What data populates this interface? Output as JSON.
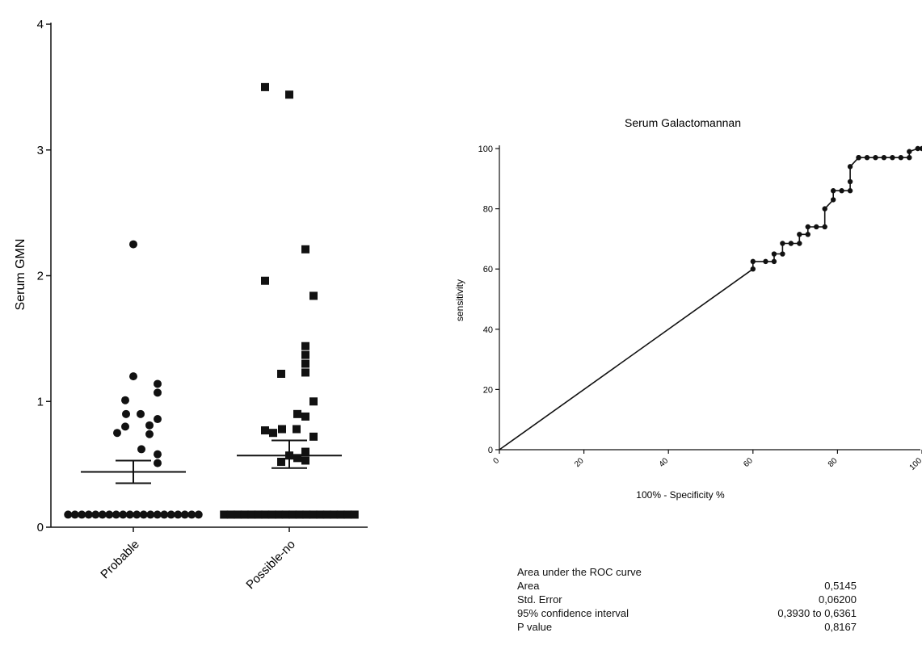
{
  "chart_data": [
    {
      "type": "scatter",
      "ylabel": "Serum GMN",
      "xlabel": "",
      "ylim": [
        0,
        4
      ],
      "yticks": [
        "0",
        "1",
        "2",
        "3",
        "4"
      ],
      "categories": [
        "Probable",
        "Possible-no"
      ],
      "series": [
        {
          "name": "Probable",
          "marker": "circle",
          "values": [
            2.25,
            1.2,
            1.14,
            1.07,
            1.01,
            0.9,
            0.9,
            0.86,
            0.81,
            0.8,
            0.75,
            0.74,
            0.62,
            0.58,
            0.51,
            0.1,
            0.1,
            0.1,
            0.1,
            0.1,
            0.1,
            0.1,
            0.1,
            0.1,
            0.1,
            0.1,
            0.1,
            0.1,
            0.1,
            0.1,
            0.1,
            0.1,
            0.1,
            0.1,
            0.1
          ],
          "mean": 0.44,
          "sem_low": 0.35,
          "sem_high": 0.53
        },
        {
          "name": "Possible-no",
          "marker": "square",
          "values": [
            3.5,
            3.44,
            2.21,
            1.96,
            1.84,
            1.44,
            1.37,
            1.3,
            1.23,
            1.22,
            1.0,
            0.9,
            0.88,
            0.78,
            0.78,
            0.77,
            0.75,
            0.72,
            0.6,
            0.57,
            0.55,
            0.53,
            0.52,
            0.1,
            0.1,
            0.1,
            0.1,
            0.1,
            0.1,
            0.1,
            0.1,
            0.1,
            0.1,
            0.1,
            0.1,
            0.1,
            0.1,
            0.1,
            0.1,
            0.1,
            0.1,
            0.1,
            0.1
          ],
          "mean": 0.57,
          "sem_low": 0.47,
          "sem_high": 0.69
        }
      ]
    },
    {
      "type": "line",
      "title": "Serum Galactomannan",
      "xlabel": "100% - Specificity %",
      "ylabel": "sensitivity",
      "xlim": [
        0,
        100
      ],
      "ylim": [
        0,
        100
      ],
      "yticks": [
        "0",
        "20",
        "40",
        "60",
        "80",
        "100"
      ],
      "xticks": [
        "0",
        "20",
        "40",
        "60",
        "80",
        "100"
      ],
      "series": [
        {
          "name": "",
          "x": [
            0,
            60,
            60,
            63,
            65,
            65,
            67,
            67,
            69,
            71,
            71,
            73,
            73,
            75,
            77,
            77,
            79,
            79,
            81,
            83,
            83,
            83,
            85,
            85,
            87,
            89,
            91,
            93,
            95,
            97,
            97,
            99,
            100
          ],
          "y": [
            0,
            60,
            62.5,
            62.5,
            62.5,
            65,
            65,
            68.5,
            68.5,
            68.5,
            71.5,
            71.5,
            74,
            74,
            74,
            80,
            83,
            86,
            86,
            86,
            89,
            94,
            97,
            97,
            97,
            97,
            97,
            97,
            97,
            97,
            99,
            100,
            100
          ]
        }
      ],
      "stats": {
        "heading": "Area under the ROC curve",
        "rows": [
          {
            "label": "Area",
            "value": "0,5145"
          },
          {
            "label": "Std. Error",
            "value": "0,06200"
          },
          {
            "label": "95% confidence interval",
            "value": "0,3930 to 0,6361"
          },
          {
            "label": "P value",
            "value": "0,8167"
          }
        ]
      }
    }
  ]
}
